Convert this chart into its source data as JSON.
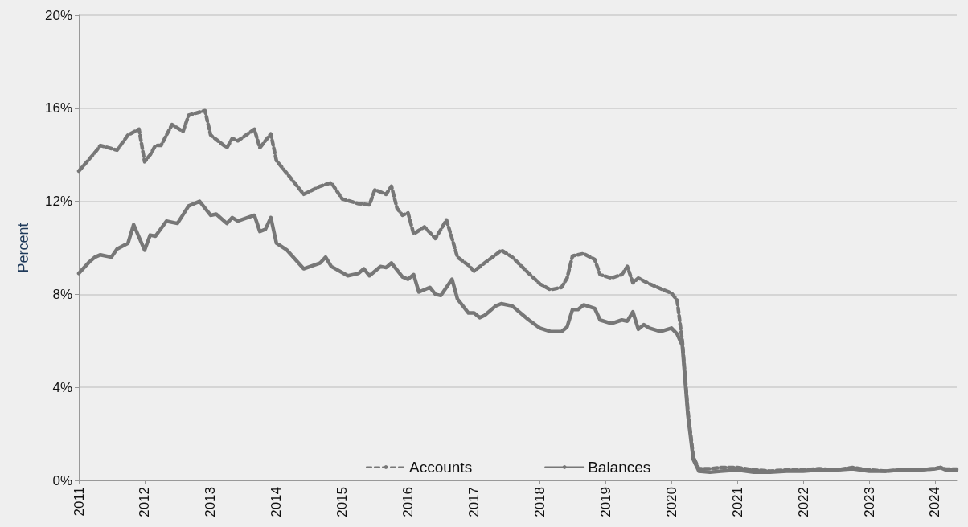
{
  "chart_data": {
    "type": "line",
    "ylabel": "Percent",
    "xlim": [
      "2011-01",
      "2024-05"
    ],
    "xticks": [
      "2011",
      "2012",
      "2013",
      "2014",
      "2015",
      "2016",
      "2017",
      "2018",
      "2019",
      "2020",
      "2021",
      "2022",
      "2023",
      "2024"
    ],
    "ylim": [
      0,
      20
    ],
    "yticks": [
      {
        "value": 0,
        "label": "0%"
      },
      {
        "value": 4,
        "label": "4%"
      },
      {
        "value": 8,
        "label": "8%"
      },
      {
        "value": 12,
        "label": "12%"
      },
      {
        "value": 16,
        "label": "16%"
      },
      {
        "value": 20,
        "label": "20%"
      }
    ],
    "grid": "y",
    "legend": "bottom",
    "marker": "none",
    "series": [
      {
        "name": "Accounts",
        "color": "#777777",
        "line_style": "dashed",
        "x": [
          "2011-01",
          "2011-04",
          "2011-05",
          "2011-08",
          "2011-10",
          "2011-12",
          "2012-01",
          "2012-02",
          "2012-03",
          "2012-04",
          "2012-06",
          "2012-08",
          "2012-09",
          "2012-12",
          "2013-01",
          "2013-04",
          "2013-05",
          "2013-06",
          "2013-09",
          "2013-10",
          "2013-12",
          "2014-01",
          "2014-04",
          "2014-06",
          "2014-09",
          "2014-11",
          "2015-01",
          "2015-04",
          "2015-06",
          "2015-07",
          "2015-09",
          "2015-10",
          "2015-11",
          "2015-12",
          "2016-01",
          "2016-02",
          "2016-04",
          "2016-06",
          "2016-08",
          "2016-09",
          "2016-10",
          "2016-12",
          "2017-01",
          "2017-03",
          "2017-05",
          "2017-06",
          "2017-08",
          "2017-11",
          "2018-01",
          "2018-03",
          "2018-05",
          "2018-06",
          "2018-07",
          "2018-09",
          "2018-11",
          "2018-12",
          "2019-02",
          "2019-04",
          "2019-05",
          "2019-06",
          "2019-07",
          "2019-09",
          "2019-12",
          "2020-01",
          "2020-02",
          "2020-03",
          "2020-04",
          "2020-05",
          "2020-06",
          "2020-08",
          "2020-10",
          "2021-01",
          "2021-04",
          "2021-07",
          "2021-10",
          "2022-01",
          "2022-04",
          "2022-07",
          "2022-10",
          "2023-01",
          "2023-04",
          "2023-07",
          "2023-10",
          "2024-01",
          "2024-02",
          "2024-03",
          "2024-05"
        ],
        "values": [
          13.3,
          14.1,
          14.4,
          14.2,
          14.85,
          15.1,
          13.7,
          14.0,
          14.4,
          14.4,
          15.3,
          15.0,
          15.7,
          15.9,
          14.85,
          14.3,
          14.7,
          14.6,
          15.1,
          14.3,
          14.9,
          13.75,
          12.9,
          12.3,
          12.65,
          12.8,
          12.1,
          11.9,
          11.85,
          12.5,
          12.3,
          12.65,
          11.7,
          11.4,
          11.5,
          10.6,
          10.9,
          10.4,
          11.2,
          10.4,
          9.6,
          9.25,
          9.0,
          9.35,
          9.7,
          9.9,
          9.6,
          8.9,
          8.45,
          8.2,
          8.3,
          8.7,
          9.65,
          9.75,
          9.5,
          8.85,
          8.7,
          8.85,
          9.2,
          8.5,
          8.7,
          8.45,
          8.15,
          8.05,
          7.75,
          6.0,
          3.0,
          1.0,
          0.5,
          0.5,
          0.55,
          0.55,
          0.45,
          0.4,
          0.45,
          0.45,
          0.5,
          0.45,
          0.55,
          0.45,
          0.4,
          0.45,
          0.45,
          0.5,
          0.55,
          0.48,
          0.48
        ]
      },
      {
        "name": "Balances",
        "color": "#777777",
        "line_style": "solid",
        "x": [
          "2011-01",
          "2011-03",
          "2011-04",
          "2011-05",
          "2011-07",
          "2011-08",
          "2011-10",
          "2011-11",
          "2012-01",
          "2012-02",
          "2012-03",
          "2012-05",
          "2012-07",
          "2012-09",
          "2012-11",
          "2013-01",
          "2013-02",
          "2013-04",
          "2013-05",
          "2013-06",
          "2013-09",
          "2013-10",
          "2013-11",
          "2013-12",
          "2014-01",
          "2014-03",
          "2014-06",
          "2014-09",
          "2014-10",
          "2014-11",
          "2015-02",
          "2015-04",
          "2015-05",
          "2015-06",
          "2015-08",
          "2015-09",
          "2015-10",
          "2015-12",
          "2016-01",
          "2016-02",
          "2016-03",
          "2016-05",
          "2016-06",
          "2016-07",
          "2016-09",
          "2016-10",
          "2016-12",
          "2017-01",
          "2017-02",
          "2017-03",
          "2017-05",
          "2017-06",
          "2017-08",
          "2017-10",
          "2017-11",
          "2018-01",
          "2018-03",
          "2018-05",
          "2018-06",
          "2018-07",
          "2018-08",
          "2018-09",
          "2018-11",
          "2018-12",
          "2019-02",
          "2019-04",
          "2019-05",
          "2019-06",
          "2019-07",
          "2019-08",
          "2019-09",
          "2019-11",
          "2020-01",
          "2020-02",
          "2020-03",
          "2020-04",
          "2020-05",
          "2020-06",
          "2020-08",
          "2020-10",
          "2021-01",
          "2021-04",
          "2021-07",
          "2021-10",
          "2022-01",
          "2022-04",
          "2022-07",
          "2022-10",
          "2023-01",
          "2023-04",
          "2023-07",
          "2023-10",
          "2024-01",
          "2024-02",
          "2024-03",
          "2024-05"
        ],
        "values": [
          8.9,
          9.4,
          9.6,
          9.7,
          9.6,
          9.95,
          10.2,
          11.0,
          9.9,
          10.55,
          10.5,
          11.15,
          11.05,
          11.8,
          12.0,
          11.4,
          11.45,
          11.05,
          11.3,
          11.15,
          11.4,
          10.7,
          10.8,
          11.3,
          10.2,
          9.9,
          9.1,
          9.35,
          9.6,
          9.2,
          8.8,
          8.9,
          9.1,
          8.8,
          9.2,
          9.15,
          9.35,
          8.75,
          8.65,
          8.85,
          8.1,
          8.3,
          8.0,
          7.95,
          8.65,
          7.8,
          7.2,
          7.2,
          7.0,
          7.1,
          7.5,
          7.6,
          7.5,
          7.1,
          6.9,
          6.55,
          6.4,
          6.4,
          6.6,
          7.35,
          7.35,
          7.55,
          7.4,
          6.9,
          6.75,
          6.9,
          6.85,
          7.25,
          6.5,
          6.7,
          6.55,
          6.4,
          6.55,
          6.3,
          5.8,
          2.8,
          0.9,
          0.4,
          0.35,
          0.4,
          0.45,
          0.35,
          0.35,
          0.4,
          0.4,
          0.45,
          0.45,
          0.5,
          0.4,
          0.4,
          0.45,
          0.45,
          0.5,
          0.55,
          0.45,
          0.45
        ]
      }
    ]
  }
}
